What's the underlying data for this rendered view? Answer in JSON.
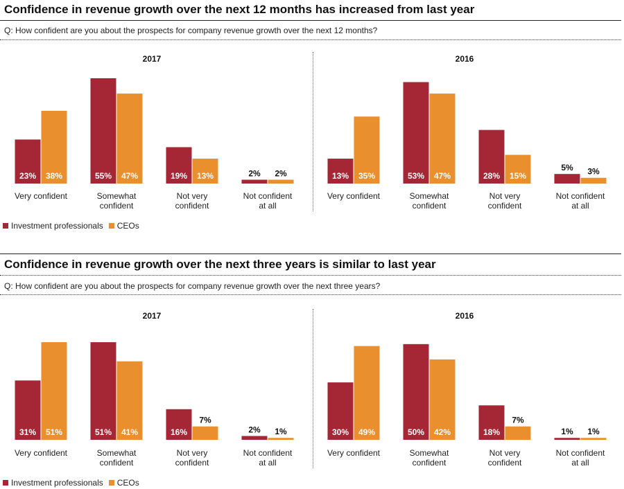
{
  "colors": {
    "investment": "#a52634",
    "ceo": "#e98f2e",
    "label_in_bar": "#ffffff"
  },
  "legend": {
    "investment": "Investment professionals",
    "ceo": "CEOs"
  },
  "sections": [
    {
      "title": "Confidence in revenue growth over the next 12 months has increased from last year",
      "question": "Q: How confident are you about the prospects for company revenue growth over the next 12 months?"
    },
    {
      "title": "Confidence in revenue growth over the next three years is similar to last year",
      "question": "Q: How confident are you about the prospects for company revenue growth over the next three years?"
    }
  ],
  "chart_data": [
    {
      "type": "bar",
      "title": "2017",
      "section": 1,
      "categories": [
        [
          "Very confident"
        ],
        [
          "Somewhat",
          "confident"
        ],
        [
          "Not very",
          "confident"
        ],
        [
          "Not confident",
          "at all"
        ]
      ],
      "series": [
        {
          "name": "Investment professionals",
          "values": [
            23,
            55,
            19,
            2
          ],
          "labels": [
            "23%",
            "55%",
            "19%",
            "2%"
          ]
        },
        {
          "name": "CEOs",
          "values": [
            38,
            47,
            13,
            2
          ],
          "labels": [
            "38%",
            "47%",
            "13%",
            "2%"
          ]
        }
      ],
      "ylim": [
        0,
        55
      ]
    },
    {
      "type": "bar",
      "title": "2016",
      "section": 1,
      "categories": [
        [
          "Very confident"
        ],
        [
          "Somewhat",
          "confident"
        ],
        [
          "Not very",
          "confident"
        ],
        [
          "Not confident",
          "at all"
        ]
      ],
      "series": [
        {
          "name": "Investment professionals",
          "values": [
            13,
            53,
            28,
            5
          ],
          "labels": [
            "13%",
            "53%",
            "28%",
            "5%"
          ]
        },
        {
          "name": "CEOs",
          "values": [
            35,
            47,
            15,
            3
          ],
          "labels": [
            "35%",
            "47%",
            "15%",
            "3%"
          ]
        }
      ],
      "ylim": [
        0,
        55
      ]
    },
    {
      "type": "bar",
      "title": "2017",
      "section": 2,
      "categories": [
        [
          "Very confident"
        ],
        [
          "Somewhat",
          "confident"
        ],
        [
          "Not very",
          "confident"
        ],
        [
          "Not confident",
          "at all"
        ]
      ],
      "series": [
        {
          "name": "Investment professionals",
          "values": [
            31,
            51,
            16,
            2
          ],
          "labels": [
            "31%",
            "51%",
            "16%",
            "2%"
          ]
        },
        {
          "name": "CEOs",
          "values": [
            51,
            41,
            7,
            1
          ],
          "labels": [
            "51%",
            "41%",
            "7%",
            "1%"
          ]
        }
      ],
      "ylim": [
        0,
        55
      ]
    },
    {
      "type": "bar",
      "title": "2016",
      "section": 2,
      "categories": [
        [
          "Very confident"
        ],
        [
          "Somewhat",
          "confident"
        ],
        [
          "Not very",
          "confident"
        ],
        [
          "Not confident",
          "at all"
        ]
      ],
      "series": [
        {
          "name": "Investment professionals",
          "values": [
            30,
            50,
            18,
            1
          ],
          "labels": [
            "30%",
            "50%",
            "18%",
            "1%"
          ]
        },
        {
          "name": "CEOs",
          "values": [
            49,
            42,
            7,
            1
          ],
          "labels": [
            "49%",
            "42%",
            "7%",
            "1%"
          ]
        }
      ],
      "ylim": [
        0,
        55
      ]
    }
  ]
}
